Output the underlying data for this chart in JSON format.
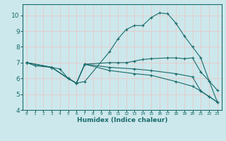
{
  "xlabel": "Humidex (Indice chaleur)",
  "xlim": [
    -0.5,
    23.5
  ],
  "ylim": [
    4,
    10.7
  ],
  "bg_color": "#cce8ec",
  "grid_color": "#e8c8c8",
  "line_color": "#1a6b6b",
  "spine_color": "#1a6b6b",
  "lines": [
    {
      "x": [
        0,
        1,
        3,
        4,
        5,
        6,
        7,
        10,
        11,
        12,
        13,
        14,
        15,
        16,
        17,
        18,
        19,
        20,
        21,
        22,
        23
      ],
      "y": [
        7.0,
        6.8,
        6.7,
        6.6,
        6.0,
        5.7,
        5.8,
        7.7,
        8.5,
        9.1,
        9.35,
        9.35,
        9.85,
        10.15,
        10.1,
        9.5,
        8.7,
        8.0,
        7.3,
        5.85,
        5.25
      ]
    },
    {
      "x": [
        0,
        3,
        5,
        6,
        7,
        10,
        11,
        12,
        13,
        14,
        15,
        17,
        18,
        19,
        20,
        21,
        22,
        23
      ],
      "y": [
        7.0,
        6.7,
        6.0,
        5.7,
        6.9,
        7.0,
        7.0,
        7.0,
        7.1,
        7.2,
        7.25,
        7.3,
        7.3,
        7.25,
        7.3,
        6.4,
        5.85,
        4.5
      ]
    },
    {
      "x": [
        0,
        3,
        5,
        6,
        7,
        10,
        13,
        15,
        18,
        20,
        21,
        22,
        23
      ],
      "y": [
        7.0,
        6.7,
        6.0,
        5.7,
        6.9,
        6.7,
        6.6,
        6.5,
        6.3,
        6.1,
        5.2,
        4.85,
        4.5
      ]
    },
    {
      "x": [
        0,
        3,
        5,
        6,
        7,
        10,
        13,
        15,
        18,
        20,
        21,
        22,
        23
      ],
      "y": [
        7.0,
        6.7,
        6.0,
        5.7,
        6.9,
        6.5,
        6.3,
        6.2,
        5.8,
        5.5,
        5.2,
        4.85,
        4.5
      ]
    }
  ],
  "yticks": [
    4,
    5,
    6,
    7,
    8,
    9,
    10
  ],
  "xticks": [
    0,
    1,
    2,
    3,
    4,
    5,
    6,
    7,
    8,
    9,
    10,
    11,
    12,
    13,
    14,
    15,
    16,
    17,
    18,
    19,
    20,
    21,
    22,
    23
  ],
  "xtick_labels": [
    "0",
    "1",
    "2",
    "3",
    "4",
    "5",
    "6",
    "7",
    "8",
    "9",
    "10",
    "11",
    "12",
    "13",
    "14",
    "15",
    "16",
    "17",
    "18",
    "19",
    "20",
    "21",
    "22",
    "23"
  ]
}
